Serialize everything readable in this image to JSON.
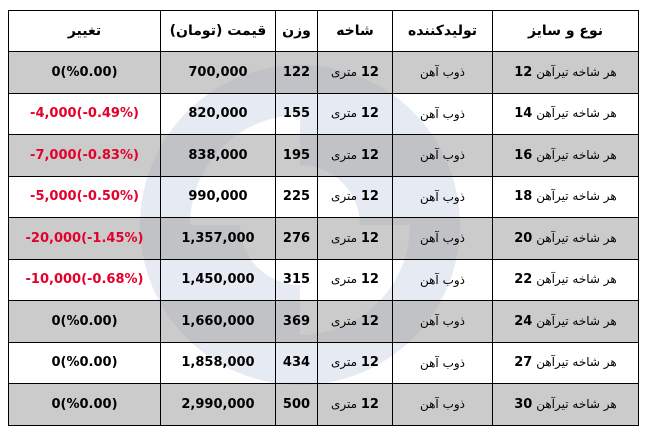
{
  "headers": {
    "type": "نوع و سایز",
    "producer": "تولیدکننده",
    "branch": "شاخه",
    "weight": "وزن",
    "price": "قیمت (تومان)",
    "change": "تغییر"
  },
  "rows": [
    {
      "type_text": "هر شاخه تیرآهن",
      "size": "12",
      "producer": "ذوب آهن",
      "branch_num": "12",
      "branch_unit": "متری",
      "weight": "122",
      "price": "700,000",
      "change": "0(%0.00)",
      "change_color": "#000000",
      "shaded": true
    },
    {
      "type_text": "هر شاخه تیرآهن",
      "size": "14",
      "producer": "ذوب آهن",
      "branch_num": "12",
      "branch_unit": "متری",
      "weight": "155",
      "price": "820,000",
      "change": "-4,000(-0.49%)",
      "change_color": "#e4002b",
      "shaded": false
    },
    {
      "type_text": "هر شاخه تیرآهن",
      "size": "16",
      "producer": "ذوب آهن",
      "branch_num": "12",
      "branch_unit": "متری",
      "weight": "195",
      "price": "838,000",
      "change": "-7,000(-0.83%)",
      "change_color": "#e4002b",
      "shaded": true
    },
    {
      "type_text": "هر شاخه تیرآهن",
      "size": "18",
      "producer": "ذوب آهن",
      "branch_num": "12",
      "branch_unit": "متری",
      "weight": "225",
      "price": "990,000",
      "change": "-5,000(-0.50%)",
      "change_color": "#e4002b",
      "shaded": false
    },
    {
      "type_text": "هر شاخه تیرآهن",
      "size": "20",
      "producer": "ذوب آهن",
      "branch_num": "12",
      "branch_unit": "متری",
      "weight": "276",
      "price": "1,357,000",
      "change": "-20,000(-1.45%)",
      "change_color": "#e4002b",
      "shaded": true
    },
    {
      "type_text": "هر شاخه تیرآهن",
      "size": "22",
      "producer": "ذوب آهن",
      "branch_num": "12",
      "branch_unit": "متری",
      "weight": "315",
      "price": "1,450,000",
      "change": "-10,000(-0.68%)",
      "change_color": "#e4002b",
      "shaded": false
    },
    {
      "type_text": "هر شاخه تیرآهن",
      "size": "24",
      "producer": "ذوب آهن",
      "branch_num": "12",
      "branch_unit": "متری",
      "weight": "369",
      "price": "1,660,000",
      "change": "0(%0.00)",
      "change_color": "#000000",
      "shaded": true
    },
    {
      "type_text": "هر شاخه تیرآهن",
      "size": "27",
      "producer": "ذوب آهن",
      "branch_num": "12",
      "branch_unit": "متری",
      "weight": "434",
      "price": "1,858,000",
      "change": "0(%0.00)",
      "change_color": "#000000",
      "shaded": false
    },
    {
      "type_text": "هر شاخه تیرآهن",
      "size": "30",
      "producer": "ذوب آهن",
      "branch_num": "12",
      "branch_unit": "متری",
      "weight": "500",
      "price": "2,990,000",
      "change": "0(%0.00)",
      "change_color": "#000000",
      "shaded": true
    }
  ]
}
